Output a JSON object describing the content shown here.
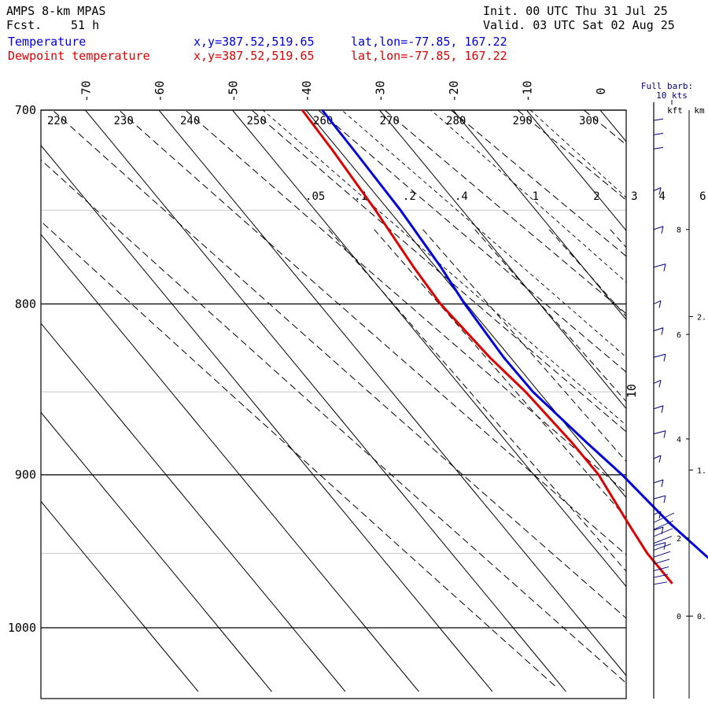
{
  "header": {
    "model": "AMPS 8-km MPAS",
    "fcst_label": "Fcst.",
    "fcst_value": "51 h",
    "init": "Init. 00 UTC Thu 31 Jul 25",
    "valid": "Valid. 03 UTC Sat 02 Aug 25",
    "temp_label": "Temperature",
    "dew_label": "Dewpoint temperature",
    "temp_xy": "x,y=387.52,519.65",
    "dew_xy": "x,y=387.52,519.65",
    "temp_latlon": "lat,lon=-77.85, 167.22",
    "dew_latlon": "lat,lon=-77.85, 167.22"
  },
  "colors": {
    "temperature": "#0000dd",
    "dewpoint": "#dd0000",
    "grid": "#000000"
  },
  "chart_data": {
    "type": "line",
    "title": "",
    "y_scale": "log-pressure",
    "ylim": [
      1040,
      700
    ],
    "pressure_ticks": [
      {
        "p": 700,
        "label": "700"
      },
      {
        "p": 800,
        "label": "800"
      },
      {
        "p": 900,
        "label": "900"
      },
      {
        "p": 1000,
        "label": "1000"
      }
    ],
    "isotherm_labels": [
      {
        "t": -70,
        "label": "-70"
      },
      {
        "t": -60,
        "label": "-60"
      },
      {
        "t": -50,
        "label": "-50"
      },
      {
        "t": -40,
        "label": "-40"
      },
      {
        "t": -30,
        "label": "-30"
      },
      {
        "t": -20,
        "label": "-20"
      },
      {
        "t": -10,
        "label": "-10"
      },
      {
        "t": 0,
        "label": "0"
      }
    ],
    "dry_adiabat_labels": [
      "220",
      "230",
      "240",
      "250",
      "260",
      "270",
      "280",
      "290",
      "300"
    ],
    "mixing_ratio_labels": [
      ".05",
      ".1",
      ".2",
      ".4",
      "1",
      "2",
      "3",
      "4",
      "6"
    ],
    "extra_label": "10",
    "series": [
      {
        "name": "Temperature",
        "color": "#0000dd",
        "points": [
          {
            "p": 700,
            "t": -37.8
          },
          {
            "p": 720,
            "t": -38.0
          },
          {
            "p": 750,
            "t": -38.4
          },
          {
            "p": 780,
            "t": -39.3
          },
          {
            "p": 800,
            "t": -40.2
          },
          {
            "p": 830,
            "t": -40.9
          },
          {
            "p": 850,
            "t": -40.8
          },
          {
            "p": 880,
            "t": -39.2
          },
          {
            "p": 900,
            "t": -38.0
          },
          {
            "p": 930,
            "t": -37.0
          },
          {
            "p": 950,
            "t": -35.8
          },
          {
            "p": 970,
            "t": -34.6
          }
        ]
      },
      {
        "name": "Dewpoint temperature",
        "color": "#dd0000",
        "points": [
          {
            "p": 700,
            "t": -40.5
          },
          {
            "p": 720,
            "t": -40.9
          },
          {
            "p": 750,
            "t": -41.8
          },
          {
            "p": 780,
            "t": -43.0
          },
          {
            "p": 800,
            "t": -43.5
          },
          {
            "p": 830,
            "t": -42.8
          },
          {
            "p": 850,
            "t": -41.8
          },
          {
            "p": 880,
            "t": -41.2
          },
          {
            "p": 900,
            "t": -41.2
          },
          {
            "p": 930,
            "t": -42.6
          },
          {
            "p": 950,
            "t": -43.4
          },
          {
            "p": 970,
            "t": -43.4
          }
        ]
      }
    ],
    "wind_panel": {
      "title_line1": "Full barb:",
      "title_line2": "10 kts",
      "unit_left": "kft",
      "unit_right": "km",
      "kft_ticks": [
        {
          "p": 992,
          "label": "0"
        },
        {
          "p": 940,
          "label": "2"
        },
        {
          "p": 878,
          "label": "4"
        },
        {
          "p": 817,
          "label": "6"
        },
        {
          "p": 760,
          "label": "8"
        }
      ],
      "km_ticks": [
        {
          "p": 992,
          "label": "0."
        },
        {
          "p": 897,
          "label": "1."
        },
        {
          "p": 807,
          "label": "2."
        }
      ]
    }
  }
}
